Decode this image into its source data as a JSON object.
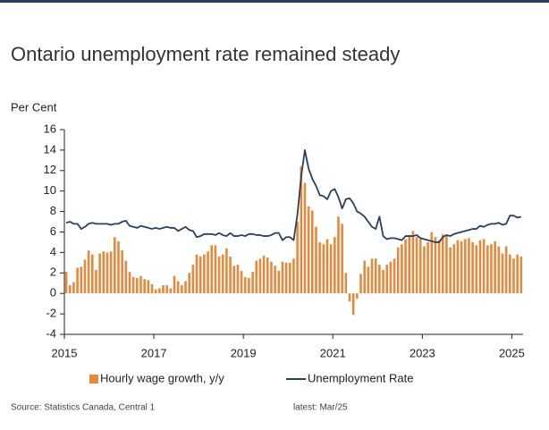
{
  "chart_data": {
    "type": "combo",
    "title": "Ontario unemployment rate remained steady",
    "y_label": "Per Cent",
    "source": "Source: Statistics Canada, Central 1",
    "note": "latest: Mar/25",
    "legend": "bottom",
    "ylim": [
      -4,
      16
    ],
    "yticks": [
      -4,
      -2,
      0,
      2,
      4,
      6,
      8,
      10,
      12,
      14,
      16
    ],
    "categories": [
      "2015",
      null,
      null,
      null,
      null,
      null,
      null,
      null,
      null,
      null,
      null,
      null,
      null,
      null,
      null,
      null,
      null,
      null,
      null,
      null,
      null,
      null,
      null,
      null,
      "2017",
      null,
      null,
      null,
      null,
      null,
      null,
      null,
      null,
      null,
      null,
      null,
      null,
      null,
      null,
      null,
      null,
      null,
      null,
      null,
      null,
      null,
      null,
      null,
      "2019",
      null,
      null,
      null,
      null,
      null,
      null,
      null,
      null,
      null,
      null,
      null,
      null,
      null,
      null,
      null,
      null,
      null,
      null,
      null,
      null,
      null,
      null,
      null,
      "2021",
      null,
      null,
      null,
      null,
      null,
      null,
      null,
      null,
      null,
      null,
      null,
      null,
      null,
      null,
      null,
      null,
      null,
      null,
      null,
      null,
      null,
      null,
      null,
      "2023",
      null,
      null,
      null,
      null,
      null,
      null,
      null,
      null,
      null,
      null,
      null,
      null,
      null,
      null,
      null,
      null,
      null,
      null,
      null,
      null,
      null,
      null,
      null,
      "2025",
      null,
      null
    ],
    "series": [
      {
        "name": "Hourly wage growth, y/y",
        "type": "bar",
        "color": "#e5893f",
        "values": [
          2.1,
          0.8,
          1.1,
          2.5,
          2.6,
          3.3,
          4.2,
          3.8,
          2.3,
          3.9,
          4.1,
          4.0,
          4.1,
          5.5,
          5.1,
          4.2,
          3.2,
          2.1,
          1.6,
          1.5,
          1.7,
          1.4,
          1.3,
          0.9,
          0.4,
          0.5,
          0.8,
          0.8,
          0.5,
          1.7,
          1.2,
          0.8,
          1.2,
          2.0,
          2.8,
          3.8,
          3.6,
          3.8,
          4.1,
          4.7,
          4.7,
          3.6,
          3.8,
          4.4,
          3.6,
          2.7,
          2.8,
          2.2,
          1.6,
          1.5,
          2.1,
          3.2,
          3.4,
          3.7,
          3.5,
          3.1,
          2.7,
          2.2,
          3.1,
          3.0,
          3.0,
          3.4,
          7.0,
          12.4,
          10.8,
          8.5,
          8.1,
          6.5,
          5.0,
          4.8,
          5.3,
          4.8,
          5.5,
          7.5,
          6.8,
          2.0,
          -0.8,
          -2.1,
          -0.5,
          1.9,
          3.2,
          2.6,
          3.4,
          3.4,
          2.8,
          2.3,
          2.8,
          3.1,
          3.4,
          4.5,
          4.8,
          5.3,
          5.7,
          6.1,
          5.5,
          5.3,
          4.6,
          5.0,
          6.0,
          5.5,
          5.2,
          5.8,
          5.6,
          4.5,
          4.8,
          5.2,
          5.1,
          5.3,
          5.4,
          5.0,
          4.7,
          5.2,
          5.3,
          4.7,
          4.8,
          5.1,
          4.6,
          3.9,
          4.6,
          3.8,
          3.4,
          3.8,
          3.6
        ]
      },
      {
        "name": "Unemployment Rate",
        "type": "line",
        "color": "#2e3f5c",
        "values": [
          6.9,
          7.0,
          6.8,
          6.8,
          6.3,
          6.5,
          6.8,
          6.9,
          6.8,
          6.8,
          6.8,
          6.8,
          6.7,
          6.8,
          6.8,
          7.0,
          7.1,
          6.6,
          6.5,
          6.4,
          6.6,
          6.5,
          6.4,
          6.3,
          6.4,
          6.3,
          6.4,
          6.5,
          6.4,
          6.4,
          6.1,
          6.3,
          6.5,
          6.2,
          6.1,
          5.5,
          5.6,
          5.8,
          5.8,
          5.8,
          5.7,
          5.9,
          5.7,
          5.6,
          5.9,
          5.6,
          5.6,
          5.7,
          5.6,
          5.8,
          5.8,
          5.7,
          5.7,
          5.6,
          5.6,
          5.7,
          5.9,
          5.9,
          5.2,
          5.5,
          5.5,
          5.2,
          7.7,
          11.4,
          14.0,
          12.2,
          11.2,
          10.5,
          9.6,
          9.5,
          9.2,
          10.0,
          10.2,
          9.4,
          8.3,
          9.2,
          9.3,
          8.8,
          8.0,
          7.8,
          7.5,
          7.0,
          6.5,
          6.3,
          7.5,
          5.6,
          5.3,
          5.4,
          5.4,
          5.3,
          5.2,
          5.6,
          5.6,
          5.6,
          5.7,
          5.4,
          5.3,
          5.2,
          5.1,
          5.0,
          5.0,
          5.5,
          5.7,
          5.6,
          5.8,
          5.9,
          6.0,
          6.1,
          6.2,
          6.3,
          6.3,
          6.6,
          6.5,
          6.7,
          6.8,
          6.8,
          6.9,
          6.7,
          6.8,
          7.6,
          7.6,
          7.4,
          7.5
        ]
      }
    ]
  }
}
